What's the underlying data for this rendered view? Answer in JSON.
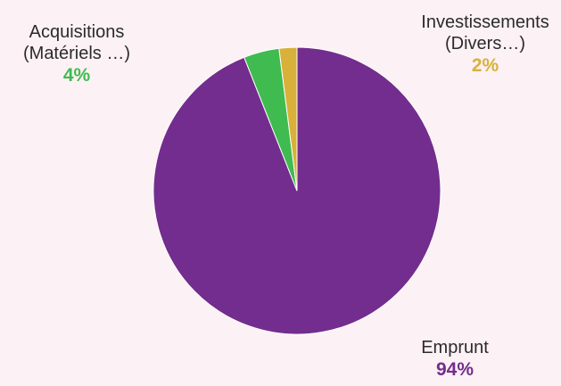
{
  "chart_data": {
    "type": "pie",
    "title": "",
    "slices": [
      {
        "label_lines": [
          "Emprunt"
        ],
        "value": 94,
        "pct_label": "94%",
        "color": "#732d8e"
      },
      {
        "label_lines": [
          "Acquisitions",
          "(Matériels …)"
        ],
        "value": 4,
        "pct_label": "4%",
        "color": "#3fbb50"
      },
      {
        "label_lines": [
          "Investissements",
          "(Divers…)"
        ],
        "value": 2,
        "pct_label": "2%",
        "color": "#d8b13a"
      }
    ],
    "start_angle": "12 o'clock",
    "direction": "counterclockwise from Emprunt, Acquisitions next, Investissements last",
    "legend": "none"
  }
}
